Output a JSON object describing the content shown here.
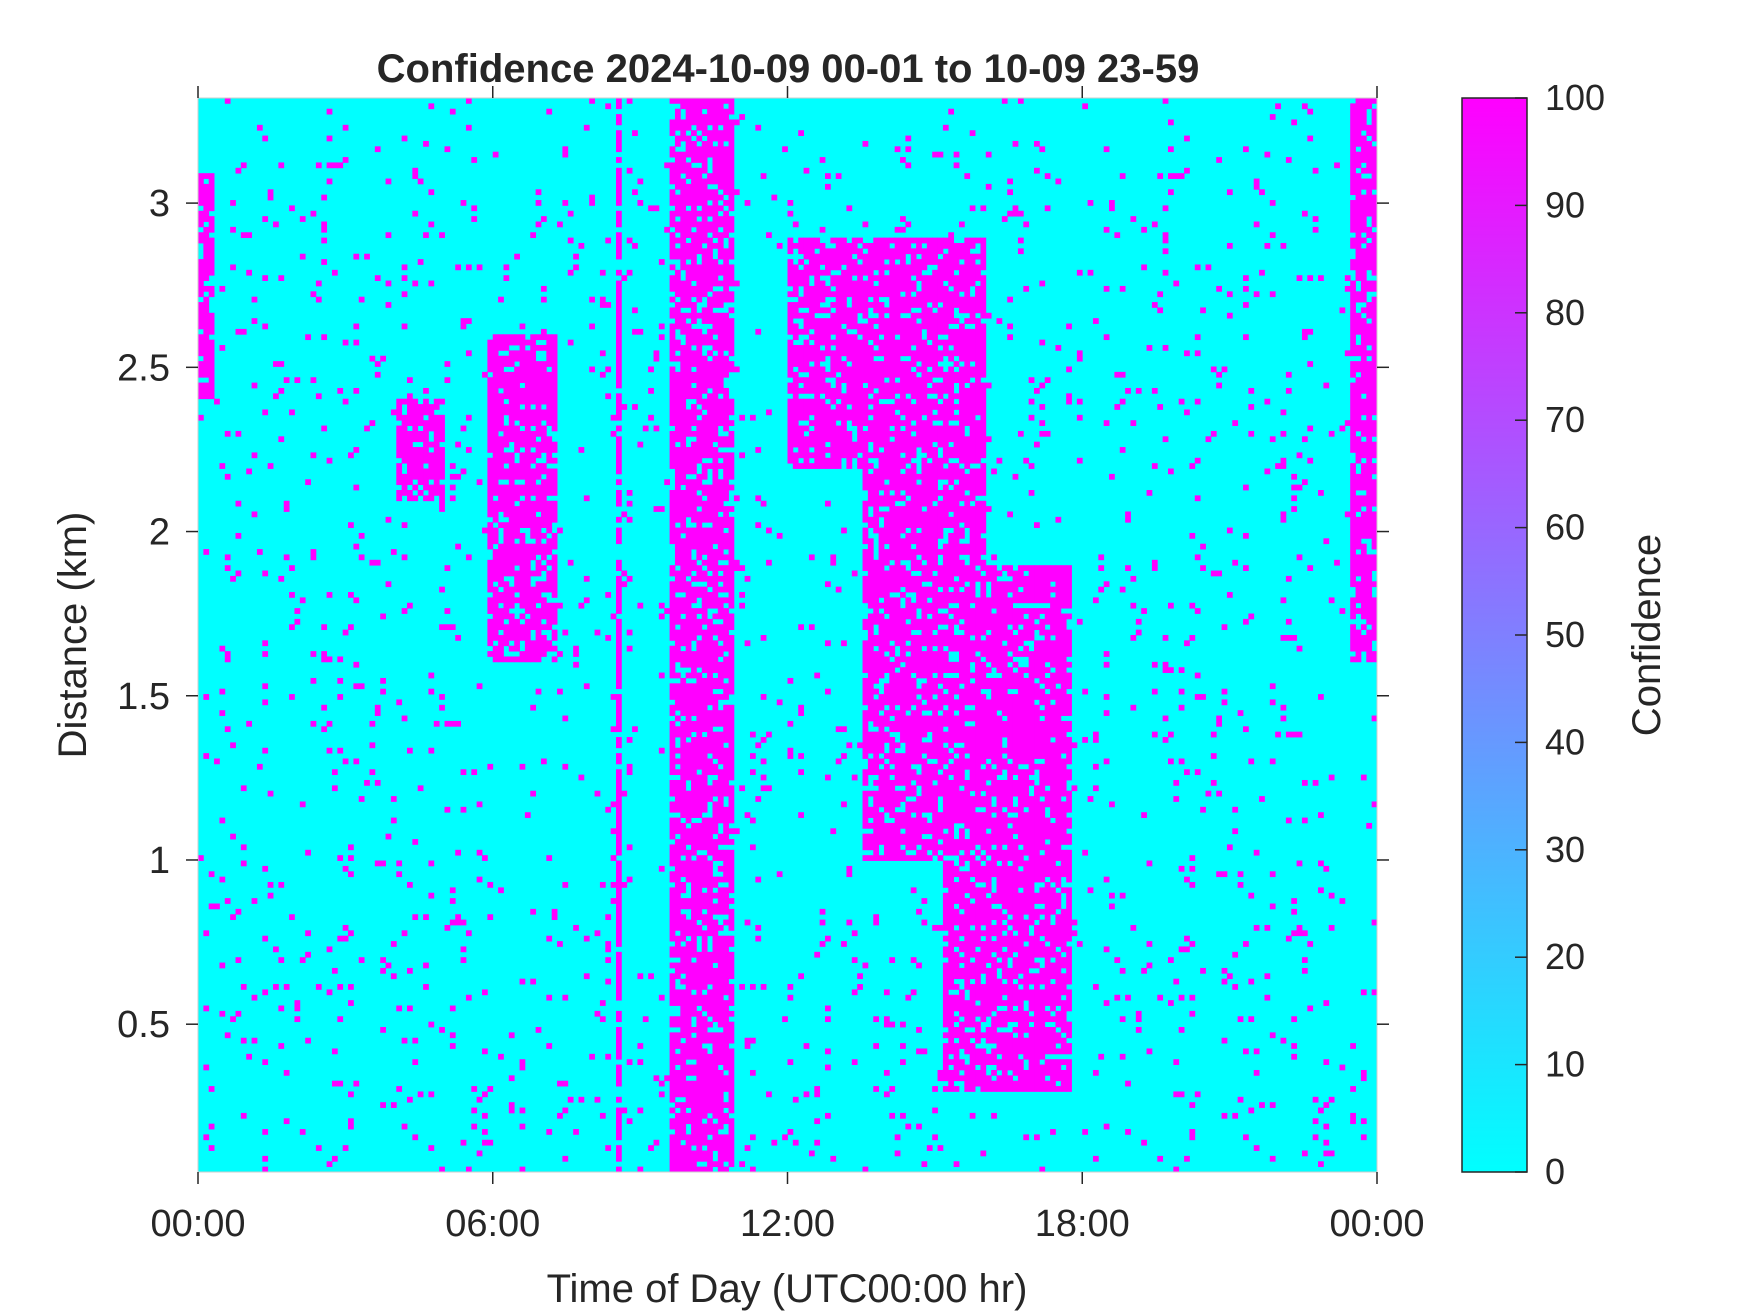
{
  "chart_data": {
    "type": "heatmap",
    "title": "Confidence 2024-10-09 00-01 to 10-09 23-59",
    "xlabel": "Time of Day (UTC00:00 hr)",
    "ylabel": "Distance (km)",
    "xlim_hours": [
      0,
      24
    ],
    "ylim_km": [
      0.05,
      3.32
    ],
    "x_ticks": [
      {
        "value": 0,
        "label": "00:00"
      },
      {
        "value": 6,
        "label": "06:00"
      },
      {
        "value": 12,
        "label": "12:00"
      },
      {
        "value": 18,
        "label": "18:00"
      },
      {
        "value": 24,
        "label": "00:00"
      }
    ],
    "y_ticks": [
      {
        "value": 0.5,
        "label": "0.5"
      },
      {
        "value": 1,
        "label": "1"
      },
      {
        "value": 1.5,
        "label": "1.5"
      },
      {
        "value": 2,
        "label": "2"
      },
      {
        "value": 2.5,
        "label": "2.5"
      },
      {
        "value": 3,
        "label": "3"
      }
    ],
    "colorbar": {
      "label": "Confidence",
      "range": [
        0,
        100
      ],
      "ticks": [
        0,
        10,
        20,
        30,
        40,
        50,
        60,
        70,
        80,
        90,
        100
      ],
      "colormap": [
        "#00ffff",
        "#ff00ff"
      ]
    },
    "values_present": [
      0,
      100
    ],
    "high_confidence_regions": [
      {
        "x_hours": [
          0,
          0.35
        ],
        "y_km": [
          2.4,
          3.1
        ]
      },
      {
        "x_hours": [
          4.0,
          5.0
        ],
        "y_km": [
          2.1,
          2.4
        ]
      },
      {
        "x_hours": [
          5.9,
          7.3
        ],
        "y_km": [
          1.6,
          2.6
        ]
      },
      {
        "x_hours": [
          8.5,
          8.6
        ],
        "y_km": [
          0.05,
          3.32
        ]
      },
      {
        "x_hours": [
          9.6,
          10.9
        ],
        "y_km": [
          0.05,
          3.32
        ]
      },
      {
        "x_hours": [
          12.0,
          13.8
        ],
        "y_km": [
          2.2,
          2.9
        ]
      },
      {
        "x_hours": [
          13.5,
          16.0
        ],
        "y_km": [
          1.0,
          2.9
        ]
      },
      {
        "x_hours": [
          15.2,
          17.8
        ],
        "y_km": [
          0.3,
          1.9
        ]
      },
      {
        "x_hours": [
          23.5,
          24.0
        ],
        "y_km": [
          1.6,
          3.32
        ]
      }
    ]
  }
}
